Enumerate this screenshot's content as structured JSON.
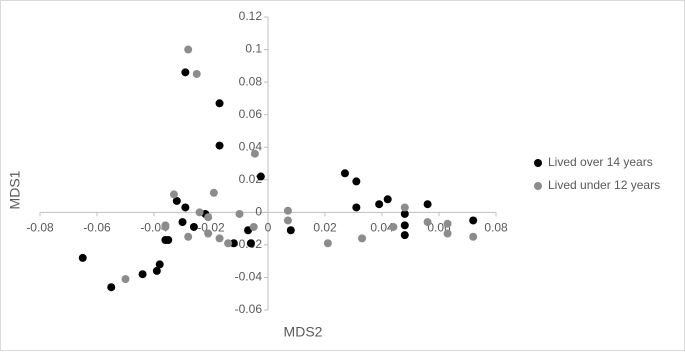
{
  "chart_data": {
    "type": "scatter",
    "x_label": "MDS2",
    "y_label": "MDS1",
    "xlim": [
      -0.08,
      0.08
    ],
    "xticks": [
      -0.08,
      -0.06,
      -0.04,
      -0.02,
      0,
      0.02,
      0.04,
      0.06,
      0.08
    ],
    "ylim": [
      -0.06,
      0.12
    ],
    "yticks": [
      -0.06,
      -0.04,
      -0.02,
      0,
      0.02,
      0.04,
      0.06,
      0.08,
      0.1,
      0.12
    ],
    "legend": "right",
    "series": [
      {
        "name": "Lived over 14 years",
        "color": "#000000",
        "x": [
          -0.029,
          -0.017,
          -0.017,
          -0.0025,
          -0.032,
          -0.029,
          -0.03,
          -0.026,
          -0.022,
          -0.036,
          -0.035,
          -0.012,
          -0.007,
          -0.006,
          -0.038,
          -0.039,
          -0.044,
          -0.055,
          -0.065,
          0.008,
          0.027,
          0.031,
          0.031,
          0.039,
          0.042,
          0.048,
          0.048,
          0.048,
          0.056,
          0.072
        ],
        "values": [
          0.086,
          0.067,
          0.041,
          0.022,
          0.007,
          0.003,
          -0.006,
          -0.009,
          -0.001,
          -0.017,
          -0.017,
          -0.019,
          -0.011,
          -0.019,
          -0.032,
          -0.036,
          -0.038,
          -0.046,
          -0.028,
          -0.011,
          0.024,
          0.019,
          0.003,
          0.005,
          0.008,
          -0.001,
          -0.008,
          -0.014,
          0.005,
          -0.005
        ]
      },
      {
        "name": "Lived under 12 years",
        "color": "#8c8c8c",
        "x": [
          -0.028,
          -0.025,
          -0.0046,
          -0.019,
          -0.033,
          -0.024,
          -0.021,
          -0.028,
          -0.036,
          -0.036,
          -0.021,
          -0.017,
          -0.014,
          -0.01,
          -0.005,
          -0.05,
          0.007,
          0.007,
          0.021,
          0.033,
          0.044,
          0.048,
          0.056,
          0.063,
          0.063,
          0.072
        ],
        "values": [
          0.1,
          0.085,
          0.036,
          0.012,
          0.011,
          0.0,
          -0.003,
          -0.015,
          -0.008,
          -0.009,
          -0.013,
          -0.016,
          -0.019,
          -0.001,
          -0.009,
          -0.041,
          0.001,
          -0.005,
          -0.019,
          -0.016,
          -0.009,
          0.003,
          -0.006,
          -0.007,
          -0.013,
          -0.015
        ]
      }
    ]
  }
}
